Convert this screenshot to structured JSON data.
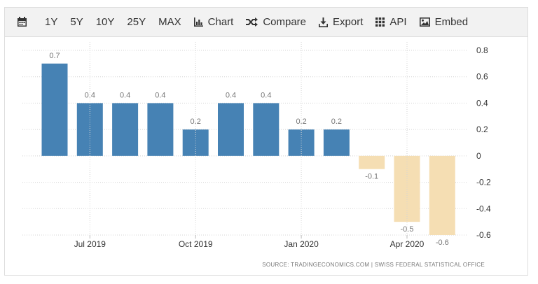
{
  "toolbar": {
    "items": [
      {
        "label": "1Y",
        "icon": "",
        "name": "range-1y-button"
      },
      {
        "label": "5Y",
        "icon": "",
        "name": "range-5y-button"
      },
      {
        "label": "10Y",
        "icon": "",
        "name": "range-10y-button"
      },
      {
        "label": "25Y",
        "icon": "",
        "name": "range-25y-button"
      },
      {
        "label": "MAX",
        "icon": "",
        "name": "range-max-button"
      },
      {
        "label": "Chart",
        "icon": "bar-chart-icon",
        "name": "chart-button"
      },
      {
        "label": "Compare",
        "icon": "shuffle-icon",
        "name": "compare-button"
      },
      {
        "label": "Export",
        "icon": "download-icon",
        "name": "export-button"
      },
      {
        "label": "API",
        "icon": "grid-icon",
        "name": "api-button"
      },
      {
        "label": "Embed",
        "icon": "image-icon",
        "name": "embed-button"
      }
    ],
    "calendar_icon": "calendar-icon"
  },
  "chart_data": {
    "type": "bar",
    "categories": [
      "2019-06",
      "2019-07",
      "2019-08",
      "2019-09",
      "2019-10",
      "2019-11",
      "2019-12",
      "2020-01",
      "2020-02",
      "2020-03",
      "2020-04",
      "2020-05"
    ],
    "values": [
      0.7,
      0.4,
      0.4,
      0.4,
      0.2,
      0.4,
      0.4,
      0.2,
      0.2,
      -0.1,
      -0.5,
      -0.6
    ],
    "data_labels": [
      "0.7",
      "0.4",
      "0.4",
      "0.4",
      "0.2",
      "0.4",
      "0.4",
      "0.2",
      "0.2",
      "-0.1",
      "-0.5",
      "-0.6"
    ],
    "x_ticks": [
      {
        "label": "Jul 2019",
        "at": "2019-07"
      },
      {
        "label": "Oct 2019",
        "at": "2019-10"
      },
      {
        "label": "Jan 2020",
        "at": "2020-01"
      },
      {
        "label": "Apr 2020",
        "at": "2020-04"
      }
    ],
    "y_ticks": [
      "0.8",
      "0.6",
      "0.4",
      "0.2",
      "0",
      "-0.2",
      "-0.4",
      "-0.6"
    ],
    "y_tick_values": [
      0.8,
      0.6,
      0.4,
      0.2,
      0,
      -0.2,
      -0.4,
      -0.6
    ],
    "ylim": [
      -0.6,
      0.8
    ],
    "y_axis_side": "right",
    "grid": true,
    "colors": {
      "positive": "#4682b4",
      "negative": "#f5deb3"
    },
    "title": "",
    "xlabel": "",
    "ylabel": "",
    "source": "SOURCE: TRADINGECONOMICS.COM  |  SWISS FEDERAL STATISTICAL OFFICE"
  }
}
